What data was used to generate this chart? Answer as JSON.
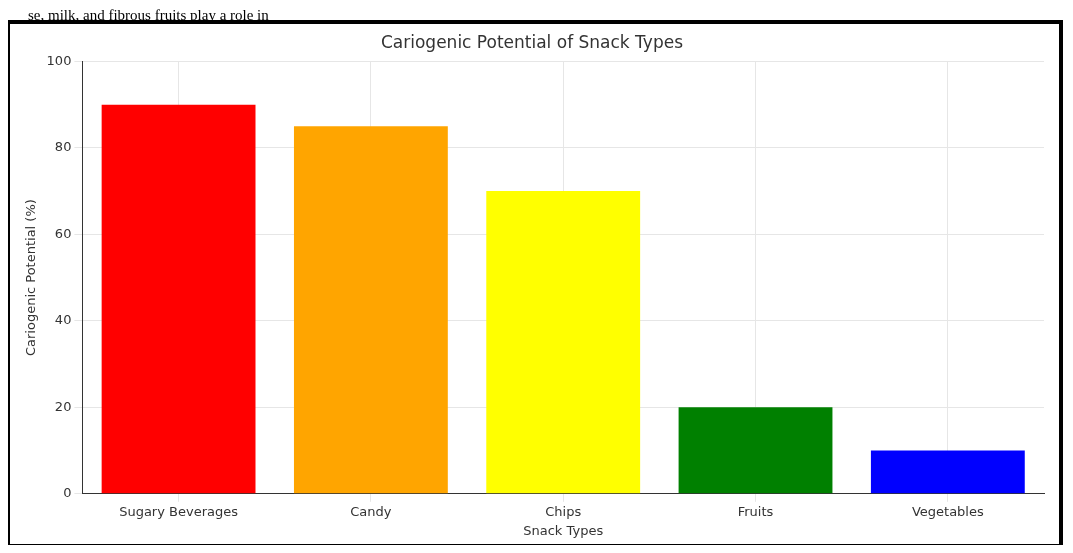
{
  "chart_data": {
    "type": "bar",
    "title": "Cariogenic Potential of Snack Types",
    "xlabel": "Snack Types",
    "ylabel": "Cariogenic Potential (%)",
    "categories": [
      "Sugary Beverages",
      "Candy",
      "Chips",
      "Fruits",
      "Vegetables"
    ],
    "values": [
      90,
      85,
      70,
      20,
      10
    ],
    "colors": [
      "#ff0000",
      "#ffa500",
      "#ffff00",
      "#008000",
      "#0000ff"
    ],
    "ylim": [
      0,
      100
    ],
    "yticks": [
      0,
      20,
      40,
      60,
      80,
      100
    ],
    "grid": true,
    "annotations": [
      "se, milk, and fibrous fruits play a role in"
    ]
  }
}
